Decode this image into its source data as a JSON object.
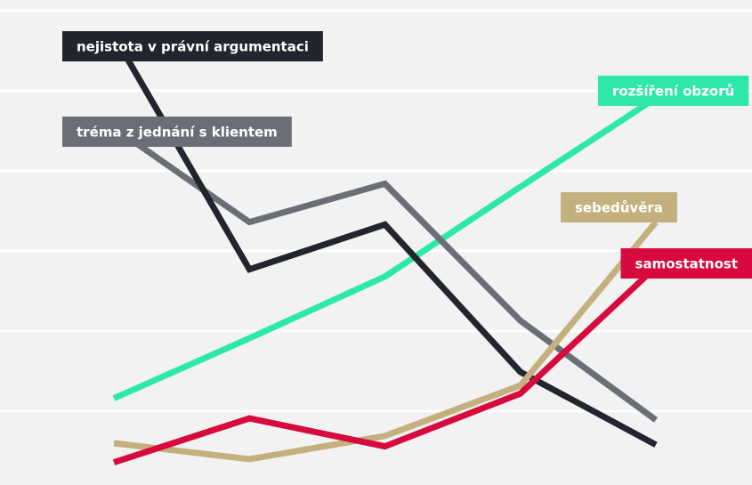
{
  "chart_data": {
    "type": "line",
    "categories": [
      null,
      null,
      null,
      null,
      null
    ],
    "ylim": [
      0,
      6
    ],
    "yticks": [
      1,
      2,
      3,
      4,
      5,
      6
    ],
    "grid": true,
    "series": [
      {
        "name": "rozšíření obzorů",
        "color": "#2de8a8",
        "values": [
          1.16,
          1.91,
          2.68,
          3.8,
          4.91
        ]
      },
      {
        "name": "tréma z jednání s klientem",
        "color": "#6b6e74",
        "values": [
          4.54,
          3.36,
          3.84,
          2.13,
          0.89
        ]
      },
      {
        "name": "nejistota v právní argumentaci",
        "color": "#22252d",
        "values": [
          5.69,
          2.77,
          3.33,
          1.49,
          0.58
        ]
      },
      {
        "name": "sebedůvěra",
        "color": "#c4b07c",
        "values": [
          0.6,
          0.4,
          0.69,
          1.32,
          3.36
        ]
      },
      {
        "name": "samostatnost",
        "color": "#d7093d",
        "values": [
          0.36,
          0.91,
          0.56,
          1.22,
          2.8
        ]
      }
    ]
  }
}
